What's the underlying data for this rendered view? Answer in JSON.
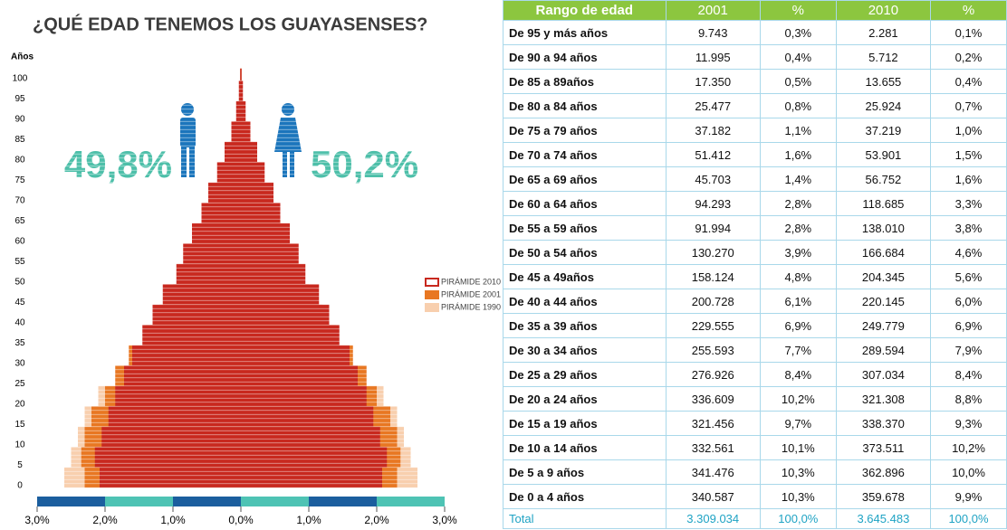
{
  "chart_data": {
    "type": "pyramid",
    "title": "¿QUÉ EDAD TENEMOS LOS GUAYASENSES?",
    "y_label": "Años",
    "categories": [
      0,
      5,
      10,
      15,
      20,
      25,
      30,
      35,
      40,
      45,
      50,
      55,
      60,
      65,
      70,
      75,
      80,
      85,
      90,
      95,
      100
    ],
    "xlim": [
      -3,
      3
    ],
    "xticks": [
      {
        "value": -3,
        "label": "3,0%"
      },
      {
        "value": -2,
        "label": "2,0%"
      },
      {
        "value": -1,
        "label": "1,0%"
      },
      {
        "value": 0,
        "label": "0,0%"
      },
      {
        "value": 1,
        "label": "1,0%"
      },
      {
        "value": 2,
        "label": "2,0%"
      },
      {
        "value": 3,
        "label": "3,0%"
      }
    ],
    "annotations": {
      "men": "49,8%",
      "women": "50,2%"
    },
    "series": [
      {
        "name": "PIRÁMIDE 2010",
        "color": "#c8281e",
        "values": [
          2.08,
          2.15,
          2.05,
          1.95,
          1.85,
          1.72,
          1.6,
          1.45,
          1.3,
          1.15,
          0.95,
          0.85,
          0.72,
          0.58,
          0.48,
          0.35,
          0.24,
          0.14,
          0.07,
          0.03,
          0.01
        ]
      },
      {
        "name": "PIRÁMIDE 2001",
        "color": "#e87722",
        "values": [
          2.3,
          2.35,
          2.3,
          2.2,
          2.0,
          1.85,
          1.65,
          1.4,
          1.2,
          1.0,
          0.85,
          0.7,
          0.6,
          0.45,
          0.35,
          0.25,
          0.17,
          0.1,
          0.05,
          0.02,
          0.01
        ]
      },
      {
        "name": "PIRÁMIDE 1990",
        "color": "#f8cfae",
        "values": [
          2.6,
          2.5,
          2.4,
          2.3,
          2.1,
          1.8,
          1.55,
          1.3,
          1.1,
          0.9,
          0.75,
          0.6,
          0.5,
          0.4,
          0.3,
          0.2,
          0.13,
          0.07,
          0.03,
          0.01,
          0
        ]
      }
    ]
  },
  "table": {
    "header": [
      "Rango de edad",
      "2001",
      "%",
      "2010",
      "%"
    ],
    "rows": [
      [
        "De 95 y más años",
        "9.743",
        "0,3%",
        "2.281",
        "0,1%"
      ],
      [
        "De 90 a 94 años",
        "11.995",
        "0,4%",
        "5.712",
        "0,2%"
      ],
      [
        "De 85 a 89años",
        "17.350",
        "0,5%",
        "13.655",
        "0,4%"
      ],
      [
        "De 80 a 84 años",
        "25.477",
        "0,8%",
        "25.924",
        "0,7%"
      ],
      [
        "De 75 a 79 años",
        "37.182",
        "1,1%",
        "37.219",
        "1,0%"
      ],
      [
        "De 70 a 74 años",
        "51.412",
        "1,6%",
        "53.901",
        "1,5%"
      ],
      [
        "De 65 a 69 años",
        "45.703",
        "1,4%",
        "56.752",
        "1,6%"
      ],
      [
        "De 60 a 64 años",
        "94.293",
        "2,8%",
        "118.685",
        "3,3%"
      ],
      [
        "De 55 a 59 años",
        "91.994",
        "2,8%",
        "138.010",
        "3,8%"
      ],
      [
        "De 50 a 54 años",
        "130.270",
        "3,9%",
        "166.684",
        "4,6%"
      ],
      [
        "De 45 a 49años",
        "158.124",
        "4,8%",
        "204.345",
        "5,6%"
      ],
      [
        "De 40 a 44 años",
        "200.728",
        "6,1%",
        "220.145",
        "6,0%"
      ],
      [
        "De 35 a 39 años",
        "229.555",
        "6,9%",
        "249.779",
        "6,9%"
      ],
      [
        "De 30 a 34 años",
        "255.593",
        "7,7%",
        "289.594",
        "7,9%"
      ],
      [
        "De 25 a 29 años",
        "276.926",
        "8,4%",
        "307.034",
        "8,4%"
      ],
      [
        "De 20 a 24 años",
        "336.609",
        "10,2%",
        "321.308",
        "8,8%"
      ],
      [
        "De 15 a 19 años",
        "321.456",
        "9,7%",
        "338.370",
        "9,3%"
      ],
      [
        "De 10 a 14 años",
        "332.561",
        "10,1%",
        "373.511",
        "10,2%"
      ],
      [
        "De 5 a 9 años",
        "341.476",
        "10,3%",
        "362.896",
        "10,0%"
      ],
      [
        "De 0 a 4 años",
        "340.587",
        "10,3%",
        "359.678",
        "9,9%"
      ]
    ],
    "total": [
      "Total",
      "3.309.034",
      "100,0%",
      "3.645.483",
      "100,0%"
    ]
  }
}
